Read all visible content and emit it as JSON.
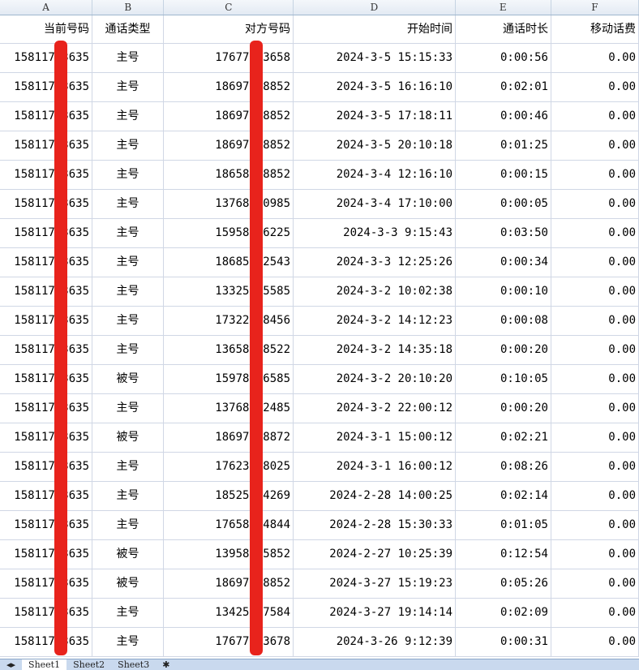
{
  "columns": [
    "A",
    "B",
    "C",
    "D",
    "E",
    "F"
  ],
  "headers": [
    "当前号码",
    "通话类型",
    "对方号码",
    "开始时间",
    "通话时长",
    "移动话费"
  ],
  "rows": [
    [
      "15811753635",
      "主号",
      "17677123658",
      "2024-3-5 15:15:33",
      "0:00:56",
      "0.00"
    ],
    [
      "15811753635",
      "主号",
      "18697378852",
      "2024-3-5 16:16:10",
      "0:02:01",
      "0.00"
    ],
    [
      "15811753635",
      "主号",
      "18697378852",
      "2024-3-5 17:18:11",
      "0:00:46",
      "0.00"
    ],
    [
      "15811753635",
      "主号",
      "18697378852",
      "2024-3-5 20:10:18",
      "0:01:25",
      "0.00"
    ],
    [
      "15811753635",
      "主号",
      "18658548852",
      "2024-3-4 12:16:10",
      "0:00:15",
      "0.00"
    ],
    [
      "15811753635",
      "主号",
      "13768250985",
      "2024-3-4 17:10:00",
      "0:00:05",
      "0.00"
    ],
    [
      "15811753635",
      "主号",
      "15958426225",
      "2024-3-3 9:15:43",
      "0:03:50",
      "0.00"
    ],
    [
      "15811753635",
      "主号",
      "18685562543",
      "2024-3-3 12:25:26",
      "0:00:34",
      "0.00"
    ],
    [
      "15811753635",
      "主号",
      "13325545585",
      "2024-3-2 10:02:38",
      "0:00:10",
      "0.00"
    ],
    [
      "15811753635",
      "主号",
      "17322538456",
      "2024-3-2 14:12:23",
      "0:00:08",
      "0.00"
    ],
    [
      "15811753635",
      "主号",
      "13658568522",
      "2024-3-2 14:35:18",
      "0:00:20",
      "0.00"
    ],
    [
      "15811753635",
      "被号",
      "15978166585",
      "2024-3-2 20:10:20",
      "0:10:05",
      "0.00"
    ],
    [
      "15811753635",
      "主号",
      "13768252485",
      "2024-3-2 22:00:12",
      "0:00:20",
      "0.00"
    ],
    [
      "15811753635",
      "被号",
      "18697398872",
      "2024-3-1 15:00:12",
      "0:02:21",
      "0.00"
    ],
    [
      "15811753635",
      "主号",
      "17623568025",
      "2024-3-1 16:00:12",
      "0:08:26",
      "0.00"
    ],
    [
      "15811753635",
      "主号",
      "18525534269",
      "2024-2-28 14:00:25",
      "0:02:14",
      "0.00"
    ],
    [
      "15811753635",
      "主号",
      "17658474844",
      "2024-2-28 15:30:33",
      "0:01:05",
      "0.00"
    ],
    [
      "15811753635",
      "被号",
      "13958265852",
      "2024-2-27 10:25:39",
      "0:12:54",
      "0.00"
    ],
    [
      "15811753635",
      "被号",
      "18697378852",
      "2024-3-27 15:19:23",
      "0:05:26",
      "0.00"
    ],
    [
      "15811753635",
      "主号",
      "13425567584",
      "2024-3-27 19:14:14",
      "0:02:09",
      "0.00"
    ],
    [
      "15811753635",
      "主号",
      "17677123678",
      "2024-3-26 9:12:39",
      "0:00:31",
      "0.00"
    ]
  ],
  "sheet_tabs": [
    "Sheet1",
    "Sheet2",
    "Sheet3"
  ],
  "redaction_color": "#e8231c"
}
